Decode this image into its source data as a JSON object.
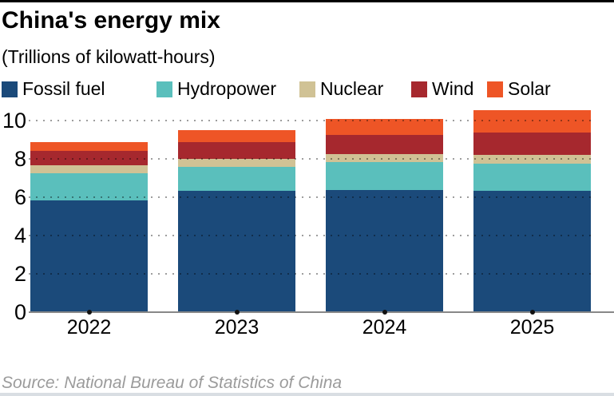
{
  "chart_data": {
    "type": "bar",
    "subtype": "stacked-vertical",
    "title": "China's energy mix",
    "subtitle": "(Trillions of kilowatt-hours)",
    "source": "Source: National Bureau of Statistics of China",
    "categories": [
      "2022",
      "2023",
      "2024",
      "2025"
    ],
    "series": [
      {
        "name": "Fossil fuel",
        "color": "#1b4a7a",
        "values": [
          5.83,
          6.32,
          6.36,
          6.33
        ]
      },
      {
        "name": "Hydropower",
        "color": "#5abfbc",
        "values": [
          1.43,
          1.26,
          1.49,
          1.42
        ]
      },
      {
        "name": "Nuclear",
        "color": "#d0c295",
        "values": [
          0.42,
          0.42,
          0.41,
          0.46
        ]
      },
      {
        "name": "Wind",
        "color": "#a6282e",
        "values": [
          0.74,
          0.86,
          0.99,
          1.18
        ]
      },
      {
        "name": "Solar",
        "color": "#ee5526",
        "values": [
          0.44,
          0.63,
          0.85,
          1.15
        ]
      }
    ],
    "yticks": [
      0,
      2,
      4,
      6,
      8,
      10
    ],
    "ylim": [
      0,
      10.6
    ],
    "xlabel": "",
    "ylabel": "",
    "grid": "horizontal-dotted",
    "legend_position": "top",
    "colors": {
      "axis": "#888888",
      "gridline": "rgba(0,0,0,0.38)",
      "source_text": "#9b9b9b",
      "top_rule": "#000000",
      "bottom_rule": "#d9dee3"
    }
  }
}
